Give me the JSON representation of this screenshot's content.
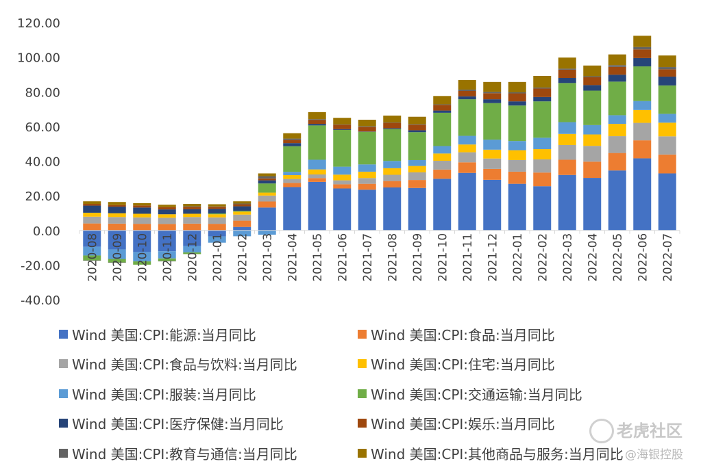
{
  "chart_data": {
    "type": "bar",
    "stacked": true,
    "categories": [
      "2020-08",
      "2020-09",
      "2020-10",
      "2020-11",
      "2020-12",
      "2021-01",
      "2021-02",
      "2021-03",
      "2021-04",
      "2021-05",
      "2021-06",
      "2021-07",
      "2021-08",
      "2021-09",
      "2021-10",
      "2021-11",
      "2021-12",
      "2022-01",
      "2022-02",
      "2022-03",
      "2022-04",
      "2022-05",
      "2022-06",
      "2022-07"
    ],
    "ylim": [
      -40,
      120
    ],
    "yticks": [
      "120.00",
      "100.00",
      "80.00",
      "60.00",
      "40.00",
      "20.00",
      "0.00",
      "-20.00",
      "-40.00"
    ],
    "ytick_values": [
      120,
      100,
      80,
      60,
      40,
      20,
      0,
      -20,
      -40
    ],
    "grid": false,
    "legend_position": "bottom",
    "series": [
      {
        "name": "Wind 美国:CPI:能源:当月同比",
        "color": "#4472C4",
        "values": [
          -9.5,
          -11.0,
          -12.5,
          -12.0,
          -9.0,
          -3.5,
          2.0,
          13.2,
          25.0,
          28.0,
          24.2,
          23.5,
          24.8,
          24.5,
          29.8,
          33.2,
          29.2,
          26.9,
          25.5,
          32.0,
          30.3,
          34.6,
          41.6,
          32.9
        ]
      },
      {
        "name": "Wind 美国:CPI:食品:当月同比",
        "color": "#ED7D31",
        "values": [
          4.0,
          3.9,
          3.8,
          3.7,
          3.9,
          3.8,
          3.6,
          3.5,
          2.4,
          2.2,
          2.4,
          3.4,
          3.7,
          4.6,
          5.3,
          6.1,
          6.3,
          7.0,
          7.9,
          8.8,
          9.4,
          10.1,
          10.4,
          10.9
        ]
      },
      {
        "name": "Wind 美国:CPI:食品与饮料:当月同比",
        "color": "#A5A5A5",
        "values": [
          3.9,
          3.8,
          3.7,
          3.6,
          3.8,
          3.7,
          3.5,
          3.4,
          2.3,
          2.1,
          2.3,
          3.3,
          3.6,
          4.4,
          5.1,
          5.8,
          6.0,
          6.7,
          7.6,
          8.5,
          9.1,
          9.7,
          10.1,
          10.5
        ]
      },
      {
        "name": "Wind 美国:CPI:住宅:当月同比",
        "color": "#FFC000",
        "values": [
          2.3,
          2.2,
          2.1,
          2.0,
          1.9,
          1.8,
          1.7,
          1.7,
          2.2,
          2.9,
          3.3,
          3.7,
          3.8,
          3.7,
          4.2,
          4.5,
          5.1,
          5.7,
          5.9,
          6.4,
          6.6,
          7.1,
          7.4,
          7.9
        ]
      },
      {
        "name": "Wind 美国:CPI:服装:当月同比",
        "color": "#5B9BD5",
        "values": [
          -5.0,
          -5.5,
          -5.4,
          -4.2,
          -3.7,
          -3.6,
          -3.4,
          -2.5,
          1.9,
          5.6,
          4.6,
          4.2,
          4.2,
          3.4,
          4.3,
          5.0,
          5.8,
          5.3,
          6.6,
          6.8,
          5.4,
          5.0,
          5.2,
          5.1
        ]
      },
      {
        "name": "Wind 美国:CPI:交通运输:当月同比",
        "color": "#70AD47",
        "values": [
          -2.8,
          -2.0,
          -1.9,
          -1.5,
          -1.0,
          0.5,
          0.5,
          5.3,
          14.8,
          19.8,
          21.2,
          18.8,
          18.4,
          16.1,
          19.2,
          21.1,
          21.1,
          20.5,
          21.0,
          22.6,
          19.9,
          19.4,
          20.0,
          16.4
        ]
      },
      {
        "name": "Wind 美国:CPI:医疗保健:当月同比",
        "color": "#264478",
        "values": [
          4.1,
          3.8,
          3.6,
          2.8,
          2.6,
          2.6,
          2.6,
          1.8,
          1.8,
          0.9,
          0.5,
          0.2,
          0.5,
          1.1,
          1.3,
          1.7,
          2.2,
          2.4,
          2.5,
          2.9,
          3.2,
          4.0,
          4.8,
          5.1
        ]
      },
      {
        "name": "Wind 美国:CPI:娱乐:当月同比",
        "color": "#9E480E",
        "values": [
          1.0,
          0.9,
          1.2,
          1.3,
          1.4,
          1.2,
          1.2,
          1.1,
          1.8,
          2.2,
          2.6,
          2.6,
          3.1,
          3.2,
          3.3,
          3.1,
          3.5,
          4.6,
          4.9,
          4.8,
          4.5,
          4.5,
          5.0,
          4.2
        ]
      },
      {
        "name": "Wind 美国:CPI:教育与通信:当月同比",
        "color": "#636363",
        "values": [
          -0.1,
          -0.2,
          0.0,
          -0.2,
          0.3,
          0.2,
          0.4,
          1.3,
          0.8,
          0.5,
          0.1,
          0.4,
          0.2,
          0.3,
          0.3,
          0.8,
          0.8,
          0.6,
          0.6,
          0.6,
          0.6,
          1.0,
          1.4,
          1.3
        ]
      },
      {
        "name": "Wind 美国:CPI:其他商品与服务:当月同比",
        "color": "#997300",
        "values": [
          1.5,
          1.8,
          1.3,
          1.4,
          1.4,
          1.3,
          1.3,
          1.6,
          3.1,
          4.1,
          3.8,
          3.8,
          4.0,
          4.3,
          4.8,
          5.5,
          5.7,
          6.0,
          6.7,
          6.4,
          6.2,
          6.2,
          6.5,
          6.7
        ]
      }
    ]
  },
  "watermark": {
    "brand": "老虎社区",
    "account": "@海银控股"
  }
}
